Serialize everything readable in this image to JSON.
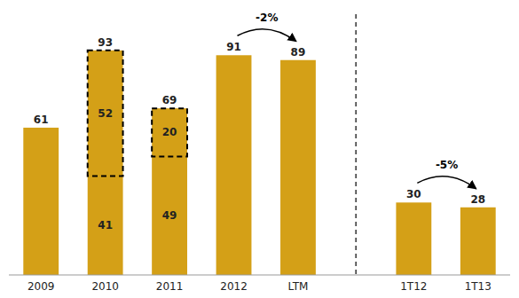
{
  "chart_data": {
    "type": "bar",
    "categories": [
      "2009",
      "2010",
      "2011",
      "2012",
      "LTM",
      "1T12",
      "1T13"
    ],
    "values": [
      61,
      93,
      69,
      91,
      89,
      30,
      28
    ],
    "color": "#D4A017",
    "ylim": [
      0,
      108
    ],
    "data_labels": true,
    "tick_labels": "x",
    "grid": false,
    "breakdowns": [
      {
        "category": "2010",
        "values": [
          41,
          52
        ]
      },
      {
        "category": "2011",
        "values": [
          49,
          20
        ]
      }
    ],
    "annotations": [
      {
        "type": "arrow",
        "text": "-2%",
        "from": "2012",
        "to": "LTM"
      },
      {
        "type": "arrow",
        "text": "-5%",
        "from": "1T12",
        "to": "1T13"
      },
      {
        "type": "separator",
        "after": "LTM"
      }
    ]
  }
}
